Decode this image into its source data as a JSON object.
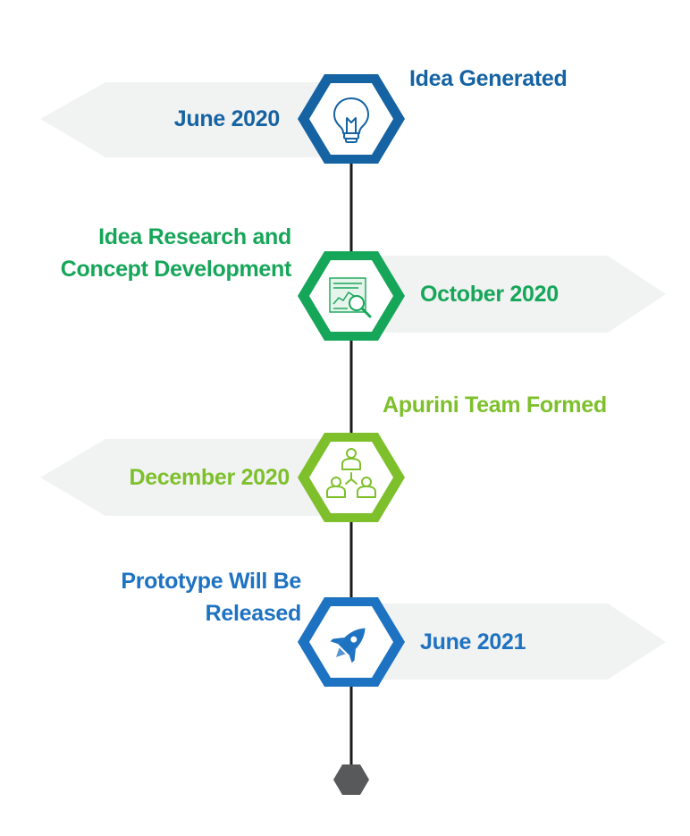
{
  "colors": {
    "dark_blue": "#1563A3",
    "green": "#16A659",
    "lime": "#7DC02B",
    "blue": "#1E72C2",
    "spine": "#1a1a1a",
    "banner": "#F1F2F2",
    "end_hex": "#58595B"
  },
  "milestones": [
    {
      "title": "Idea Generated",
      "date": "June 2020",
      "icon": "lightbulb-icon",
      "color": "#1563A3"
    },
    {
      "title": "Idea Research and Concept Development",
      "title_lines": [
        "Idea Research and",
        "Concept Development"
      ],
      "date": "October 2020",
      "icon": "research-document-icon",
      "color": "#16A659"
    },
    {
      "title": "Apurini Team Formed",
      "date": "December 2020",
      "icon": "team-icon",
      "color": "#7DC02B"
    },
    {
      "title": "Prototype Will Be Released",
      "title_lines": [
        "Prototype Will Be",
        "Released"
      ],
      "date": "June 2021",
      "icon": "rocket-icon",
      "color": "#1E72C2"
    }
  ]
}
